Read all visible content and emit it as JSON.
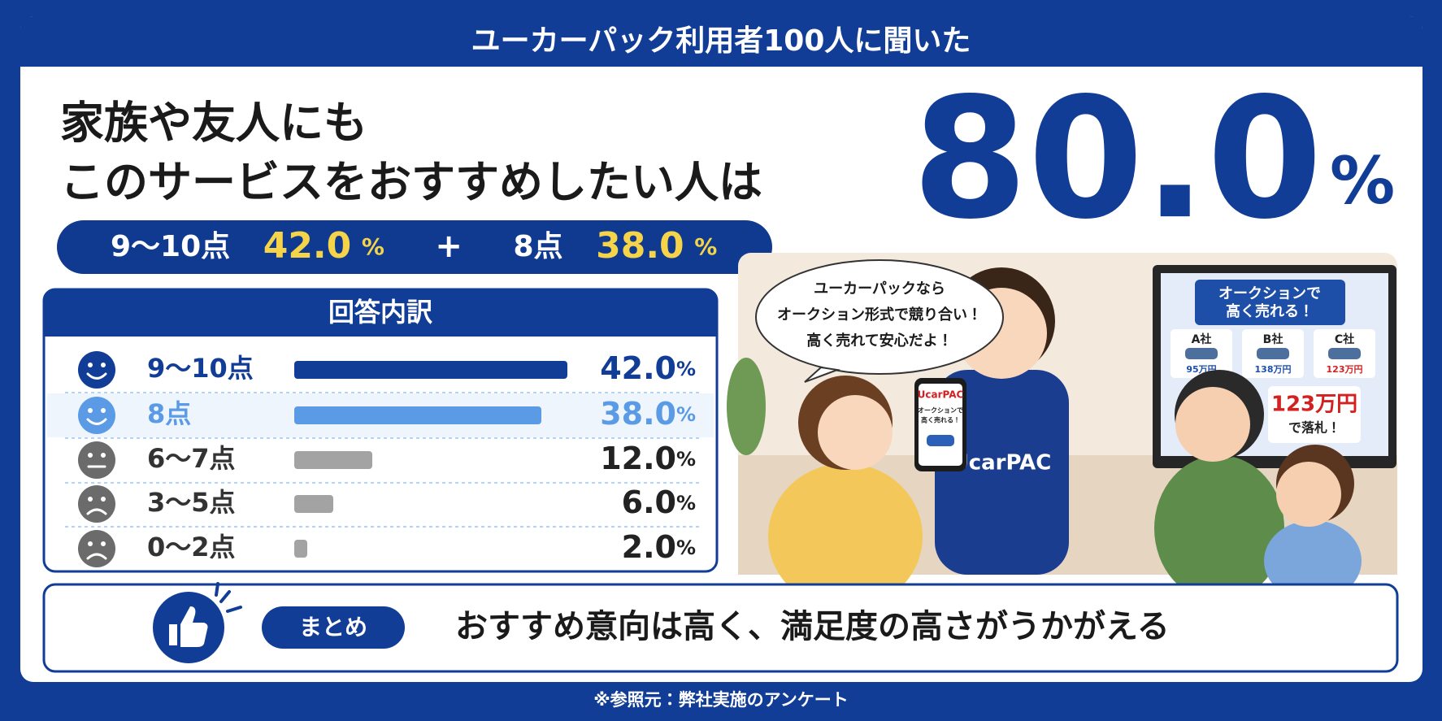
{
  "header": {
    "title": "ユーカーパック利用者100人に聞いた"
  },
  "headline": {
    "lines": [
      "家族や友人にも",
      "このサービスをおすすめしたい人は"
    ],
    "value": "80.0",
    "unit": "%"
  },
  "summary": {
    "parts": [
      {
        "label": "9～10点",
        "value": "42.0",
        "unit": "%"
      },
      {
        "label": "8点",
        "value": "38.0",
        "unit": "%"
      }
    ],
    "operator": "+"
  },
  "breakdown": {
    "title": "回答内訳",
    "categories": [
      "9～10点",
      "8点",
      "6～7点",
      "3～5点",
      "0～2点"
    ],
    "values": [
      42,
      38,
      12,
      6,
      2
    ],
    "value_labels": [
      "42.0",
      "38.0",
      "12.0",
      "6.0",
      "2.0"
    ],
    "unit": "%",
    "colors": [
      "#123d96",
      "#5b9be6",
      "#a3a3a3",
      "#a3a3a3",
      "#a3a3a3"
    ]
  },
  "illustration": {
    "speech": [
      "ユーカーパックなら",
      "オークション形式で競り合い！",
      "高く売れて安心だよ！"
    ],
    "phone": {
      "brand": "UcarPAC",
      "caption": [
        "オークションで",
        "高く売れる！"
      ]
    },
    "hoodie": "UcarPAC",
    "tv": {
      "title": [
        "オークションで",
        "高く売れる！"
      ],
      "bids": [
        {
          "company": "A社",
          "price": "95万円"
        },
        {
          "company": "B社",
          "price": "138万円"
        },
        {
          "company": "C社",
          "price": "123万円"
        }
      ],
      "result": {
        "price": "123万円",
        "caption": "で落札！"
      }
    }
  },
  "conclusion": {
    "tag": "まとめ",
    "text": "おすすめ意向は高く、満足度の高さがうかがえる"
  },
  "footer": {
    "note": "※参照元：弊社実施のアンケート"
  }
}
